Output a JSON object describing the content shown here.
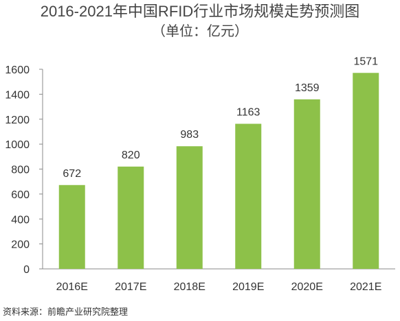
{
  "chart_data": {
    "type": "bar",
    "title": "2016-2021年中国RFID行业市场规模走势预测图",
    "subtitle": "（单位：亿元）",
    "categories": [
      "2016E",
      "2017E",
      "2018E",
      "2019E",
      "2020E",
      "2021E"
    ],
    "values": [
      672,
      820,
      983,
      1163,
      1359,
      1571
    ],
    "ylim": [
      0,
      1600
    ],
    "yticks": [
      0,
      200,
      400,
      600,
      800,
      1000,
      1200,
      1400,
      1600
    ],
    "grid": false,
    "legend": "none",
    "bar_color": "#8dc149"
  },
  "source": "资料来源：前瞻产业研究院整理"
}
